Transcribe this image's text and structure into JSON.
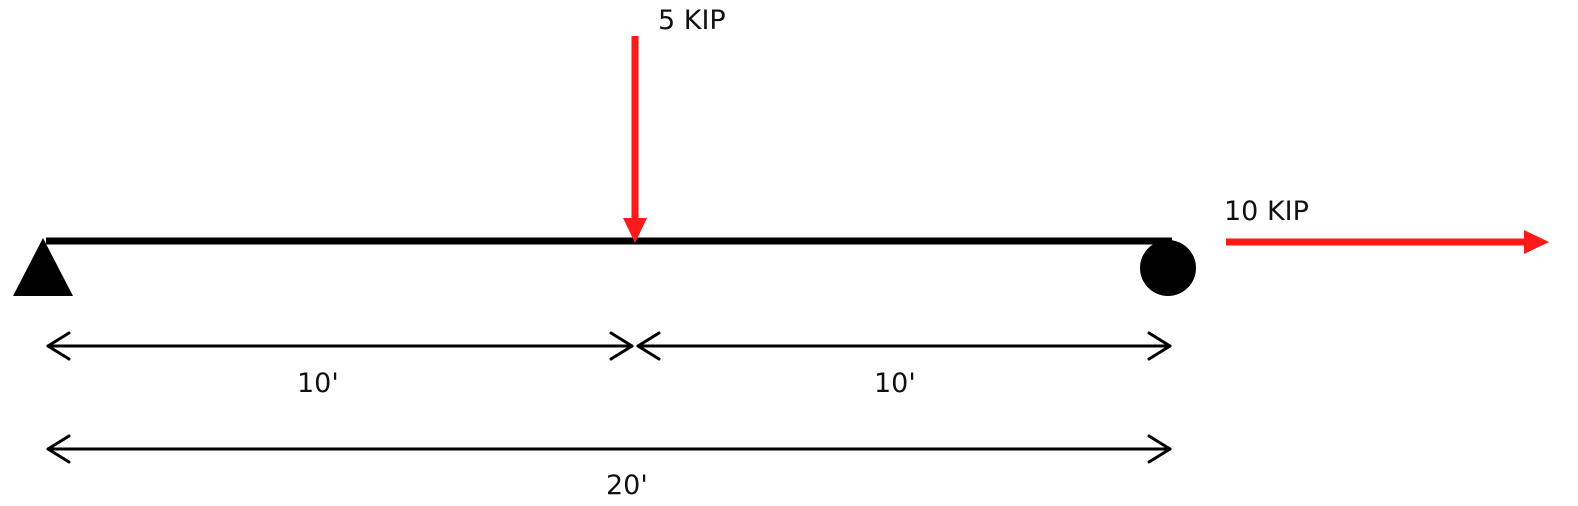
{
  "loads": {
    "point_load_label": "5 KIP",
    "axial_load_label": "10 KIP"
  },
  "dimensions": {
    "left_span_label": "10'",
    "right_span_label": "10'",
    "total_span_label": "20'"
  },
  "supports": {
    "left": "pin-support-icon",
    "right": "roller-support-icon"
  },
  "colors": {
    "beam": "#000000",
    "load": "#ff1a1a",
    "dimension": "#000000"
  }
}
